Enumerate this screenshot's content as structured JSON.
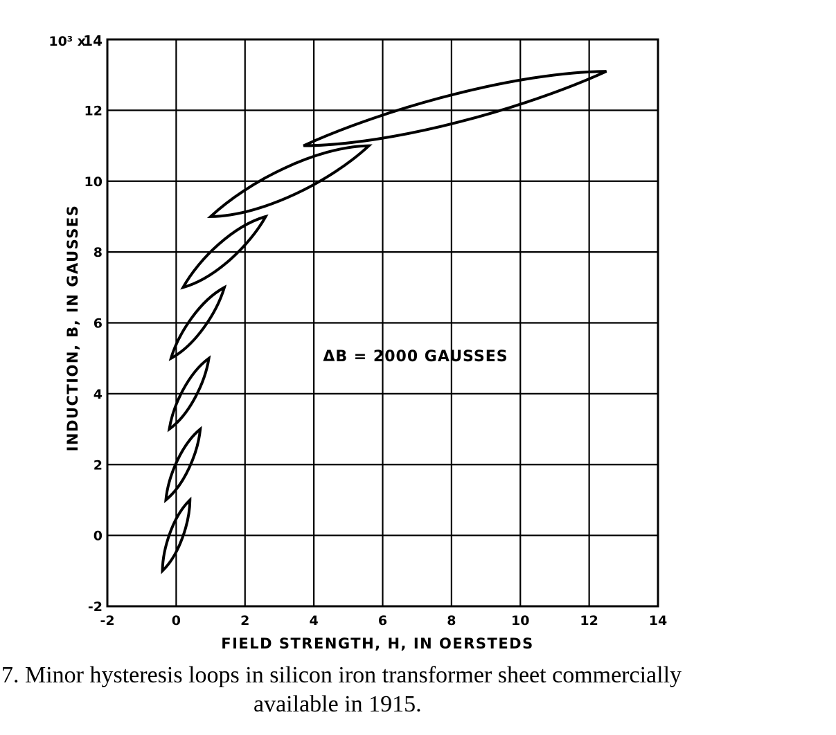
{
  "chart_data": {
    "type": "line",
    "title": "",
    "xlabel": "FIELD STRENGTH, H, IN OERSTEDS",
    "ylabel": "INDUCTION, B, IN GAUSSES",
    "y_multiplier_label": "10³ x",
    "xlim": [
      -2,
      14
    ],
    "ylim": [
      -2,
      14
    ],
    "x_ticks": [
      -2,
      0,
      2,
      4,
      6,
      8,
      10,
      12,
      14
    ],
    "y_ticks": [
      -2,
      0,
      2,
      4,
      6,
      8,
      10,
      12,
      14
    ],
    "x_tick_labels": [
      "-2",
      "0",
      "2",
      "4",
      "6",
      "8",
      "10",
      "12",
      "14"
    ],
    "y_tick_labels": [
      "-2",
      "0",
      "2",
      "4",
      "6",
      "8",
      "10",
      "12",
      "14"
    ],
    "grid": true,
    "annotation": "ΔB = 2000 GAUSSES",
    "series": [
      {
        "loop": [
          [
            -0.4,
            -1
          ],
          [
            0.4,
            1
          ]
        ]
      },
      {
        "loop": [
          [
            -0.3,
            1
          ],
          [
            0.7,
            3
          ]
        ]
      },
      {
        "loop": [
          [
            -0.2,
            3
          ],
          [
            0.95,
            5
          ]
        ]
      },
      {
        "loop": [
          [
            -0.15,
            5
          ],
          [
            1.4,
            7
          ]
        ]
      },
      {
        "loop": [
          [
            0.2,
            7
          ],
          [
            2.6,
            9
          ]
        ]
      },
      {
        "loop": [
          [
            1.0,
            9
          ],
          [
            5.6,
            11
          ]
        ]
      },
      {
        "loop": [
          [
            3.7,
            11
          ],
          [
            12.5,
            13.1
          ]
        ]
      }
    ]
  },
  "caption": {
    "line1": "7.   Minor hysteresis loops in silicon iron transformer sheet commercially",
    "line2": "available in 1915."
  }
}
